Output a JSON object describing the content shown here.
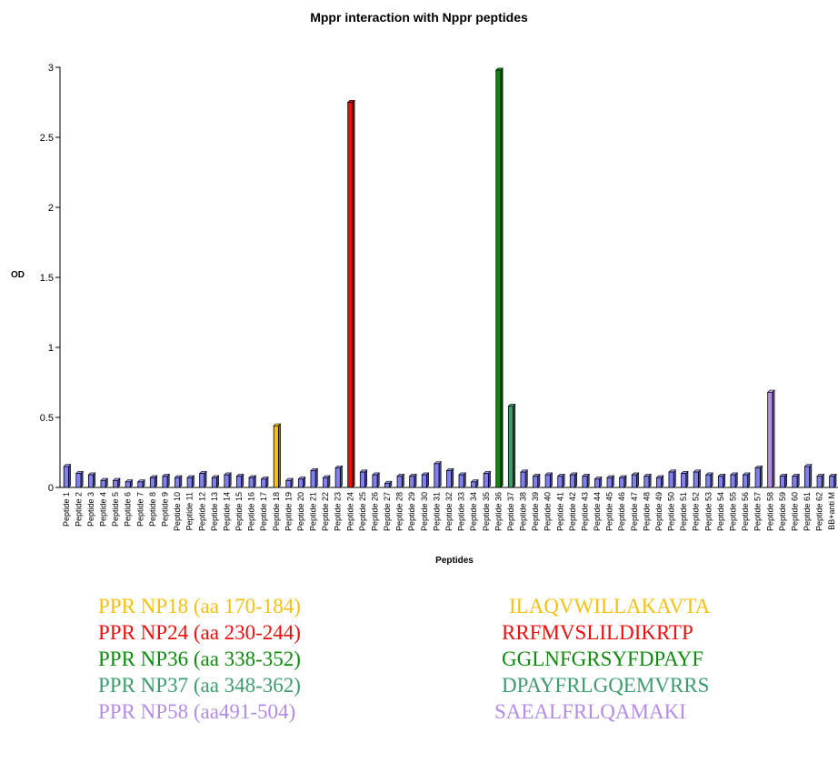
{
  "chart_data": {
    "type": "bar",
    "title": "Mppr  interaction with Nppr peptides",
    "xlabel": "Peptides",
    "ylabel": "OD",
    "ylim": [
      0,
      3
    ],
    "yticks": [
      "0",
      "0.5",
      "1",
      "1.5",
      "2",
      "2.5",
      "3"
    ],
    "yticks_values": [
      0,
      0.5,
      1,
      1.5,
      2,
      2.5,
      3
    ],
    "categories": [
      "Peptide 1",
      "Peptide 2",
      "Peptide 3",
      "Peptide 4",
      "Peptide 5",
      "Peptide 6",
      "Peptide 7",
      "Peptide 8",
      "Peptide 9",
      "Peptide 10",
      "Peptide 11",
      "Peptide 12",
      "Peptide 13",
      "Peptide 14",
      "Peptide 15",
      "Peptide 16",
      "Peptide 17",
      "Peptide 18",
      "Peptide 19",
      "Peptide 20",
      "Peptide 21",
      "Peptide 22",
      "Peptide 23",
      "Peptide 24",
      "Peptide 25",
      "Peptide 26",
      "Peptide 27",
      "Peptide 28",
      "Peptide 29",
      "Peptide 30",
      "Peptide 31",
      "Peptide 32",
      "Peptide 33",
      "Peptide 34",
      "Peptide 35",
      "Peptide 36",
      "Peptide 37",
      "Peptide 38",
      "Peptide 39",
      "Peptide 40",
      "Peptide 41",
      "Peptide 42",
      "Peptide 43",
      "Peptide 44",
      "Peptide 45",
      "Peptide 46",
      "Peptide 47",
      "Peptide 48",
      "Peptide 49",
      "Peptide 50",
      "Peptide 51",
      "Peptide 52",
      "Peptide 53",
      "Peptide 54",
      "Peptide 55",
      "Peptide 56",
      "Peptide 57",
      "Peptide 58",
      "Peptide 59",
      "Peptide 60",
      "Peptide 61",
      "Peptide 62",
      "BB+anti M"
    ],
    "values": [
      0.15,
      0.1,
      0.09,
      0.05,
      0.05,
      0.04,
      0.04,
      0.07,
      0.08,
      0.07,
      0.07,
      0.1,
      0.07,
      0.09,
      0.08,
      0.07,
      0.06,
      0.44,
      0.05,
      0.06,
      0.12,
      0.07,
      0.14,
      2.75,
      0.11,
      0.09,
      0.03,
      0.08,
      0.08,
      0.09,
      0.17,
      0.12,
      0.09,
      0.04,
      0.1,
      2.98,
      0.58,
      0.11,
      0.08,
      0.09,
      0.08,
      0.09,
      0.08,
      0.06,
      0.07,
      0.07,
      0.09,
      0.08,
      0.07,
      0.11,
      0.1,
      0.11,
      0.09,
      0.08,
      0.09,
      0.09,
      0.14,
      0.68,
      0.08,
      0.08,
      0.15,
      0.08,
      0.08
    ],
    "colors": {
      "default": "#8080ee",
      "Peptide 18": "#f7c010",
      "Peptide 24": "#ee0e0e",
      "Peptide 36": "#0e8a0e",
      "Peptide 37": "#3c9c6c",
      "Peptide 58": "#b48ce6"
    },
    "grid": false
  },
  "legend": [
    {
      "label": "PPR NP18 (aa 170-184)",
      "sequence": "ILAQVWILLAKAVTA",
      "color": "#f7c010"
    },
    {
      "label": "PPR NP24 (aa 230-244)",
      "sequence": "RRFMVSLILDIKRTP",
      "color": "#ee0e0e"
    },
    {
      "label": "PPR NP36 (aa 338-352)",
      "sequence": "GGLNFGRSYFDPAYF",
      "color": "#0e8a0e"
    },
    {
      "label": "PPR NP37 (aa 348-362)",
      "sequence": "DPAYFRLGQEMVRRS",
      "color": "#3c9c6c"
    },
    {
      "label": "PPR NP58 (aa491-504)",
      "sequence": "SAEALFRLQAMAKI",
      "color": "#b48ce6"
    }
  ]
}
